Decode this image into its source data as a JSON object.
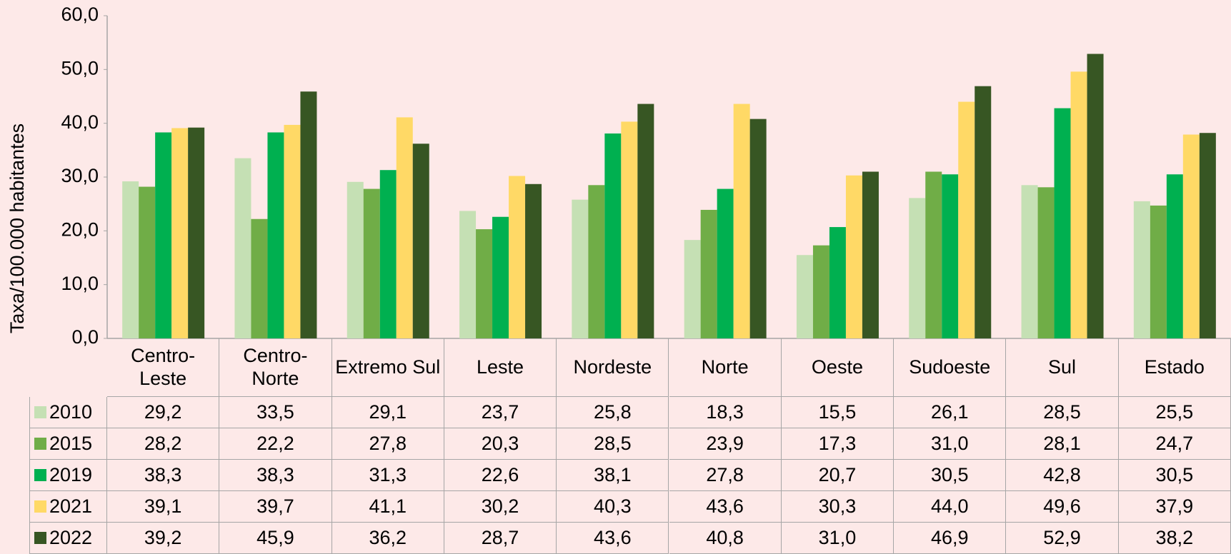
{
  "chart_data": {
    "type": "bar",
    "y_label": "Taxa/100.000 habitantes",
    "categories": [
      "Centro-Leste",
      "Centro-Norte",
      "Extremo Sul",
      "Leste",
      "Nordeste",
      "Norte",
      "Oeste",
      "Sudoeste",
      "Sul",
      "Estado"
    ],
    "series": [
      {
        "name": "2010",
        "color": "#c5e0b4",
        "values": [
          29.2,
          33.5,
          29.1,
          23.7,
          25.8,
          18.3,
          15.5,
          26.1,
          28.5,
          25.5
        ],
        "value_labels": [
          "29,2",
          "33,5",
          "29,1",
          "23,7",
          "25,8",
          "18,3",
          "15,5",
          "26,1",
          "28,5",
          "25,5"
        ]
      },
      {
        "name": "2015",
        "color": "#70ad47",
        "values": [
          28.2,
          22.2,
          27.8,
          20.3,
          28.5,
          23.9,
          17.3,
          31.0,
          28.1,
          24.7
        ],
        "value_labels": [
          "28,2",
          "22,2",
          "27,8",
          "20,3",
          "28,5",
          "23,9",
          "17,3",
          "31,0",
          "28,1",
          "24,7"
        ]
      },
      {
        "name": "2019",
        "color": "#00b050",
        "values": [
          38.3,
          38.3,
          31.3,
          22.6,
          38.1,
          27.8,
          20.7,
          30.5,
          42.8,
          30.5
        ],
        "value_labels": [
          "38,3",
          "38,3",
          "31,3",
          "22,6",
          "38,1",
          "27,8",
          "20,7",
          "30,5",
          "42,8",
          "30,5"
        ]
      },
      {
        "name": "2021",
        "color": "#ffd966",
        "values": [
          39.1,
          39.7,
          41.1,
          30.2,
          40.3,
          43.6,
          30.3,
          44.0,
          49.6,
          37.9
        ],
        "value_labels": [
          "39,1",
          "39,7",
          "41,1",
          "30,2",
          "40,3",
          "43,6",
          "30,3",
          "44,0",
          "49,6",
          "37,9"
        ]
      },
      {
        "name": "2022",
        "color": "#375623",
        "values": [
          39.2,
          45.9,
          36.2,
          28.7,
          43.6,
          40.8,
          31.0,
          46.9,
          52.9,
          38.2
        ],
        "value_labels": [
          "39,2",
          "45,9",
          "36,2",
          "28,7",
          "43,6",
          "40,8",
          "31,0",
          "46,9",
          "52,9",
          "38,2"
        ]
      }
    ],
    "ylim": [
      0,
      60
    ],
    "yticks": [
      {
        "value": 0,
        "label": "0,0"
      },
      {
        "value": 10,
        "label": "10,0"
      },
      {
        "value": 20,
        "label": "20,0"
      },
      {
        "value": 30,
        "label": "30,0"
      },
      {
        "value": 40,
        "label": "40,0"
      },
      {
        "value": 50,
        "label": "50,0"
      },
      {
        "value": 60,
        "label": "60,0"
      }
    ],
    "grid": false
  }
}
